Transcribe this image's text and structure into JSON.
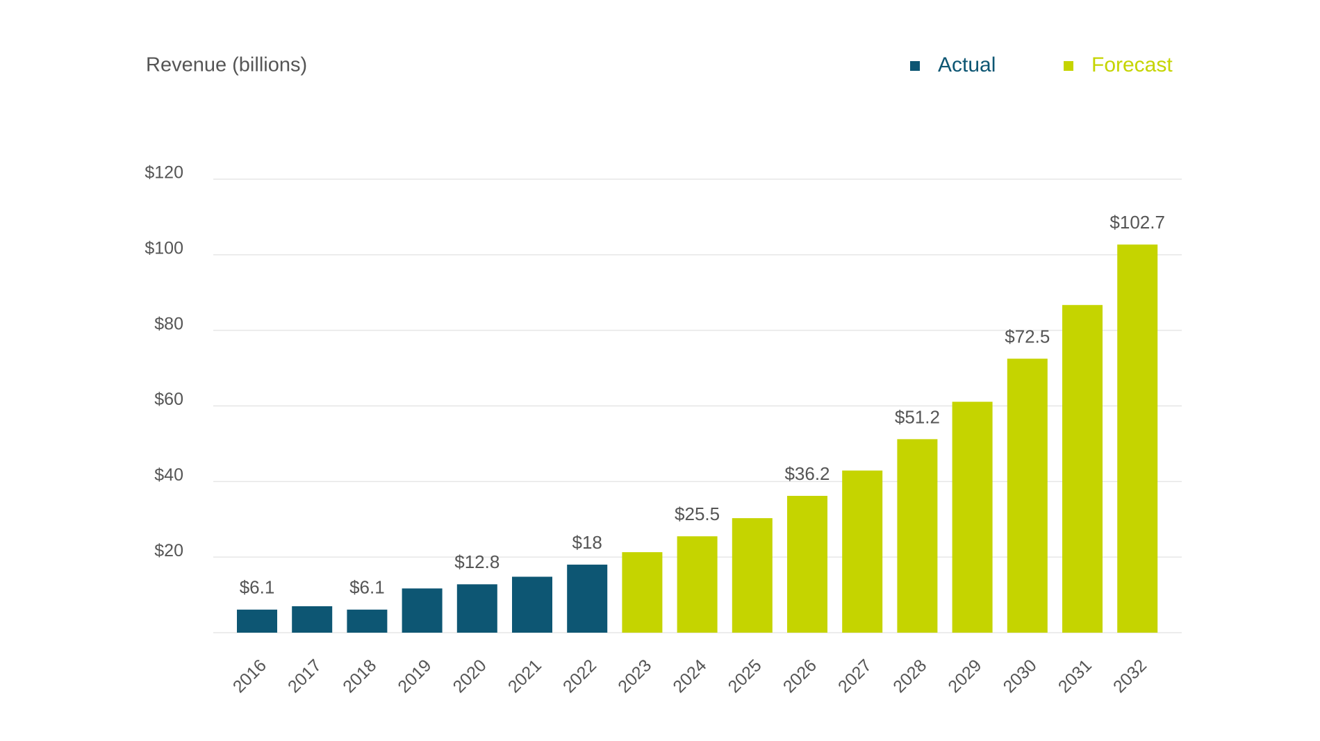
{
  "chart_data": {
    "type": "bar",
    "title": "Revenue (billions)",
    "categories": [
      "2016",
      "2017",
      "2018",
      "2019",
      "2020",
      "2021",
      "2022",
      "2023",
      "2024",
      "2025",
      "2026",
      "2027",
      "2028",
      "2029",
      "2030",
      "2031",
      "2032"
    ],
    "series": [
      {
        "name": "Actual",
        "color": "#0d5673",
        "values": [
          6.1,
          7.0,
          6.1,
          11.7,
          12.8,
          14.8,
          18,
          null,
          null,
          null,
          null,
          null,
          null,
          null,
          null,
          null,
          null
        ],
        "value_labels": [
          "$6.1",
          null,
          "$6.1",
          null,
          "$12.8",
          null,
          "$18",
          null,
          null,
          null,
          null,
          null,
          null,
          null,
          null,
          null,
          null
        ]
      },
      {
        "name": "Forecast",
        "color": "#c5d400",
        "values": [
          null,
          null,
          null,
          null,
          null,
          null,
          null,
          21.3,
          25.5,
          30.3,
          36.2,
          42.9,
          51.2,
          61.1,
          72.5,
          86.7,
          102.7
        ],
        "value_labels": [
          null,
          null,
          null,
          null,
          null,
          null,
          null,
          null,
          "$25.5",
          null,
          "$36.2",
          null,
          "$51.2",
          null,
          "$72.5",
          null,
          "$102.7"
        ]
      }
    ],
    "ylim": [
      0,
      120
    ],
    "yticks": [
      {
        "value": 20,
        "label": "$20"
      },
      {
        "value": 40,
        "label": "$40"
      },
      {
        "value": 60,
        "label": "$60"
      },
      {
        "value": 80,
        "label": "$80"
      },
      {
        "value": 100,
        "label": "$100"
      },
      {
        "value": 120,
        "label": "$120"
      }
    ],
    "grid": true
  }
}
